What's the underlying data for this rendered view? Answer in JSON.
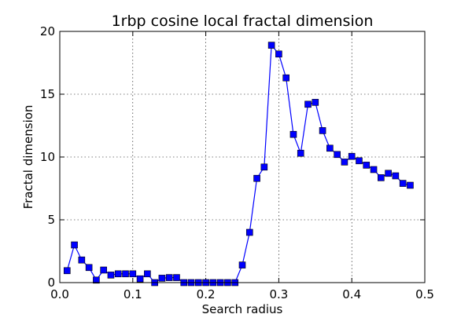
{
  "chart_data": {
    "type": "line",
    "title": "1rbp cosine local fractal dimension",
    "xlabel": "Search radius",
    "ylabel": "Fractal dimension",
    "xlim": [
      0.0,
      0.5
    ],
    "ylim": [
      0,
      20
    ],
    "xticks": [
      "0.0",
      "0.1",
      "0.2",
      "0.3",
      "0.4",
      "0.5"
    ],
    "yticks": [
      "0",
      "5",
      "10",
      "15",
      "20"
    ],
    "grid": true,
    "line_color": "#0000ff",
    "marker": "square",
    "series": [
      {
        "x": [
          0.01,
          0.02,
          0.03,
          0.04,
          0.05,
          0.06,
          0.07,
          0.08,
          0.09,
          0.1,
          0.11,
          0.12,
          0.13,
          0.14,
          0.15,
          0.16,
          0.17,
          0.18,
          0.19,
          0.2,
          0.21,
          0.22,
          0.23,
          0.24,
          0.25,
          0.26,
          0.27,
          0.28,
          0.29,
          0.3,
          0.31,
          0.32,
          0.33,
          0.34,
          0.35,
          0.36,
          0.37,
          0.38,
          0.39,
          0.4,
          0.41,
          0.42,
          0.43,
          0.44,
          0.45,
          0.46,
          0.47,
          0.48
        ],
        "y": [
          0.95,
          3.0,
          1.8,
          1.2,
          0.2,
          1.0,
          0.6,
          0.7,
          0.7,
          0.7,
          0.3,
          0.7,
          0.0,
          0.35,
          0.4,
          0.4,
          0.0,
          0.0,
          0.0,
          0.0,
          0.0,
          0.0,
          0.0,
          0.0,
          1.4,
          4.0,
          8.3,
          9.2,
          18.9,
          18.2,
          16.3,
          11.8,
          10.3,
          14.2,
          14.35,
          12.1,
          10.7,
          10.2,
          9.6,
          10.05,
          9.7,
          9.35,
          9.0,
          8.35,
          8.7,
          8.5,
          7.9,
          7.75
        ]
      }
    ]
  }
}
